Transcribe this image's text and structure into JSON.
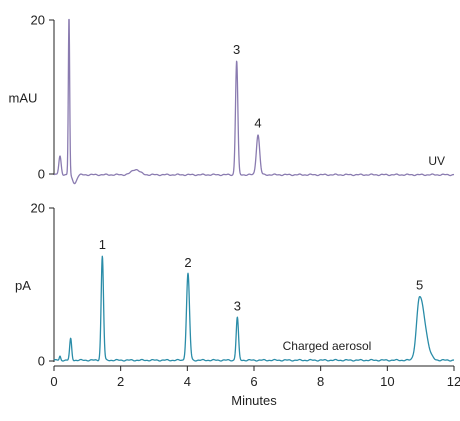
{
  "chart_data": [
    {
      "type": "line",
      "ylabel": "mAU",
      "ylim": [
        0,
        20
      ],
      "y_ticks": [
        0,
        20
      ],
      "x_ticks": [],
      "xlim": [
        0,
        12
      ],
      "trace_label": "UV",
      "color": "#8a7bb0",
      "baseline_mAU": -0.1,
      "peaks": [
        {
          "label": "",
          "x": 0.18,
          "y": 2.3
        },
        {
          "label": "",
          "x": 0.45,
          "y": 20.5
        },
        {
          "label": "",
          "x": 2.45,
          "y": 0.6
        },
        {
          "label": "3",
          "x": 5.48,
          "y": 14.7
        },
        {
          "label": "4",
          "x": 6.12,
          "y": 5.1
        }
      ]
    },
    {
      "type": "line",
      "ylabel": "pA",
      "xlabel": "Minutes",
      "ylim": [
        0,
        20
      ],
      "y_ticks": [
        0,
        20
      ],
      "xlim": [
        0,
        12
      ],
      "x_ticks": [
        0,
        2,
        4,
        6,
        8,
        10,
        12
      ],
      "trace_label": "Charged aerosol",
      "color": "#2a8ca8",
      "baseline_pA": 0.1,
      "peaks": [
        {
          "label": "",
          "x": 0.18,
          "y": 0.6
        },
        {
          "label": "",
          "x": 0.5,
          "y": 2.9
        },
        {
          "label": "1",
          "x": 1.45,
          "y": 13.7
        },
        {
          "label": "2",
          "x": 4.02,
          "y": 11.4
        },
        {
          "label": "3",
          "x": 5.5,
          "y": 5.7
        },
        {
          "label": "5",
          "x": 10.97,
          "y": 8.4
        }
      ]
    }
  ]
}
